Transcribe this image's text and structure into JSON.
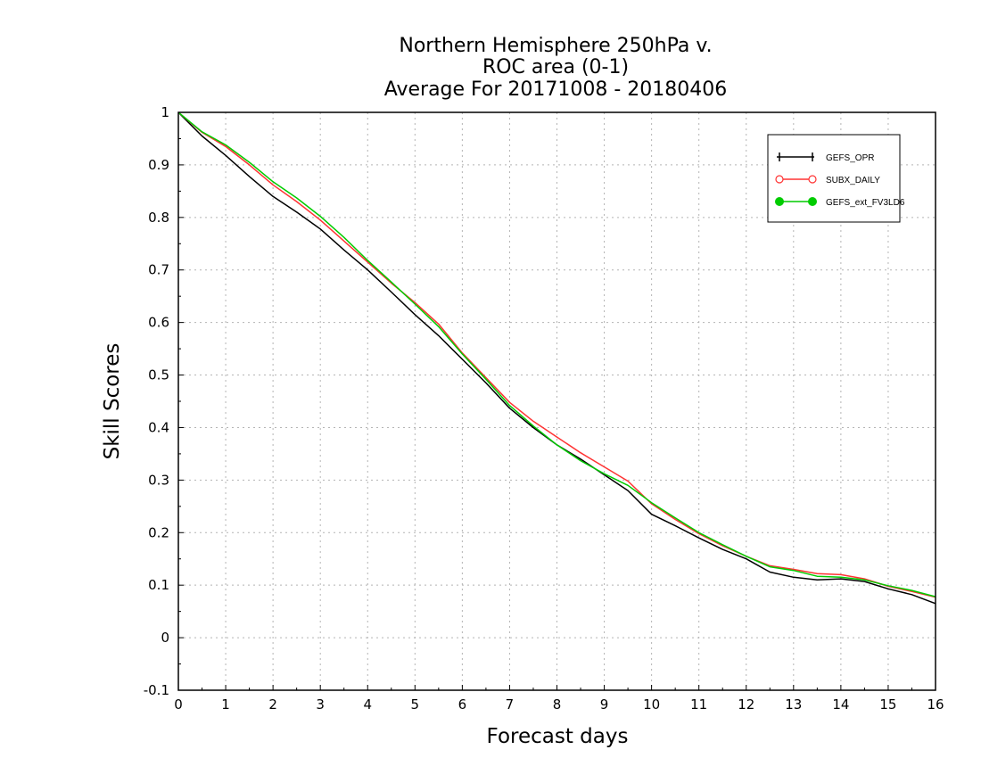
{
  "chart_data": {
    "type": "line",
    "title": [
      "Northern Hemisphere 250hPa v.",
      "ROC area (0-1)",
      "Average For 20171008 - 20180406"
    ],
    "xlabel": "Forecast days",
    "ylabel": "Skill Scores",
    "xlim": [
      0,
      16
    ],
    "ylim": [
      -0.1,
      1
    ],
    "x_ticks": [
      0,
      1,
      2,
      3,
      4,
      5,
      6,
      7,
      8,
      9,
      10,
      11,
      12,
      13,
      14,
      15,
      16
    ],
    "y_ticks": [
      -0.1,
      0,
      0.1,
      0.2,
      0.3,
      0.4,
      0.5,
      0.6,
      0.7,
      0.8,
      0.9,
      1
    ],
    "y_tick_labels": [
      "-0.1",
      "0",
      "0.1",
      "0.2",
      "0.3",
      "0.4",
      "0.5",
      "0.6",
      "0.7",
      "0.8",
      "0.9",
      "1"
    ],
    "grid": true,
    "legend_position": "top-right",
    "x": [
      0,
      0.5,
      1,
      1.5,
      2,
      2.5,
      3,
      3.5,
      4,
      4.5,
      5,
      5.5,
      6,
      6.5,
      7,
      7.5,
      8,
      8.5,
      9,
      9.5,
      10,
      10.5,
      11,
      11.5,
      12,
      12.5,
      13,
      13.5,
      14,
      14.5,
      15,
      15.5,
      16
    ],
    "series": [
      {
        "name": "GEFS_OPR",
        "color": "#000000",
        "marker": "plus",
        "values": [
          1.0,
          0.955,
          0.918,
          0.878,
          0.84,
          0.81,
          0.778,
          0.738,
          0.7,
          0.658,
          0.615,
          0.575,
          0.53,
          0.485,
          0.437,
          0.4,
          0.367,
          0.34,
          0.31,
          0.28,
          0.235,
          0.213,
          0.19,
          0.168,
          0.15,
          0.125,
          0.115,
          0.11,
          0.112,
          0.107,
          0.093,
          0.082,
          0.065
        ]
      },
      {
        "name": "SUBX_DAILY",
        "color": "#ff3333",
        "marker": "open-circle",
        "values": [
          1.0,
          0.962,
          0.935,
          0.9,
          0.862,
          0.83,
          0.795,
          0.755,
          0.715,
          0.675,
          0.638,
          0.597,
          0.542,
          0.495,
          0.448,
          0.412,
          0.382,
          0.352,
          0.325,
          0.298,
          0.255,
          0.225,
          0.198,
          0.175,
          0.155,
          0.137,
          0.13,
          0.122,
          0.12,
          0.112,
          0.098,
          0.088,
          0.077
        ]
      },
      {
        "name": "GEFS_ext_FV3LD6",
        "color": "#00cc00",
        "marker": "filled-circle",
        "values": [
          1.0,
          0.963,
          0.938,
          0.905,
          0.868,
          0.837,
          0.802,
          0.762,
          0.718,
          0.677,
          0.635,
          0.592,
          0.54,
          0.492,
          0.442,
          0.403,
          0.367,
          0.337,
          0.312,
          0.29,
          0.257,
          0.228,
          0.2,
          0.177,
          0.155,
          0.135,
          0.128,
          0.117,
          0.115,
          0.11,
          0.099,
          0.09,
          0.078
        ]
      }
    ]
  }
}
